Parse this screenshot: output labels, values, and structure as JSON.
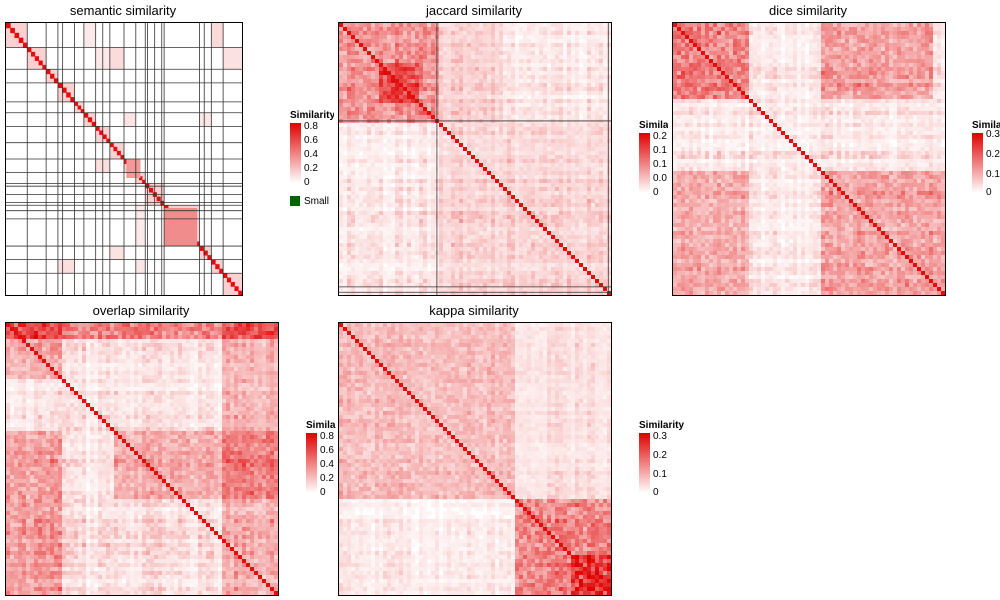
{
  "chart_data": [
    {
      "type": "heatmap",
      "title": "semantic similarity",
      "legend_title": "Similarity",
      "legend_ticks": [
        "0.8",
        "0.6",
        "0.4",
        "0.2",
        "0"
      ],
      "extra_legend_label": "Small",
      "range": [
        0,
        0.8
      ],
      "diagonal_blocks": [
        [
          0,
          0.09
        ],
        [
          0.09,
          0.17
        ],
        [
          0.17,
          0.22
        ],
        [
          0.22,
          0.29
        ],
        [
          0.29,
          0.33
        ],
        [
          0.33,
          0.38
        ],
        [
          0.38,
          0.44
        ],
        [
          0.44,
          0.5
        ],
        [
          0.5,
          0.55
        ],
        [
          0.55,
          0.59
        ],
        [
          0.59,
          0.67
        ],
        [
          0.67,
          0.82
        ],
        [
          0.82,
          0.87
        ],
        [
          0.87,
          0.92
        ],
        [
          0.92,
          1.0
        ]
      ],
      "colors": {
        "low": "#ffffff",
        "high": "#e00000"
      }
    },
    {
      "type": "heatmap",
      "title": "jaccard similarity",
      "legend_title": "Similarity",
      "legend_ticks": [
        "0.2",
        "0.1",
        "0.1",
        "0.0",
        "0"
      ],
      "range": [
        0,
        0.2
      ],
      "colors": {
        "low": "#ffffff",
        "high": "#e00000"
      }
    },
    {
      "type": "heatmap",
      "title": "dice similarity",
      "legend_title": "Similarity",
      "legend_ticks": [
        "0.3",
        "0.2",
        "0.1",
        "0"
      ],
      "range": [
        0,
        0.3
      ],
      "colors": {
        "low": "#ffffff",
        "high": "#e00000"
      }
    },
    {
      "type": "heatmap",
      "title": "overlap similarity",
      "legend_title": "Similarity",
      "legend_ticks": [
        "0.8",
        "0.6",
        "0.4",
        "0.2",
        "0"
      ],
      "range": [
        0,
        0.8
      ],
      "colors": {
        "low": "#ffffff",
        "high": "#e00000"
      }
    },
    {
      "type": "heatmap",
      "title": "kappa similarity",
      "legend_title": "Similarity",
      "legend_ticks": [
        "0.3",
        "0.2",
        "0.1",
        "0"
      ],
      "range": [
        0,
        0.3
      ],
      "colors": {
        "low": "#ffffff",
        "high": "#e00000"
      }
    }
  ]
}
